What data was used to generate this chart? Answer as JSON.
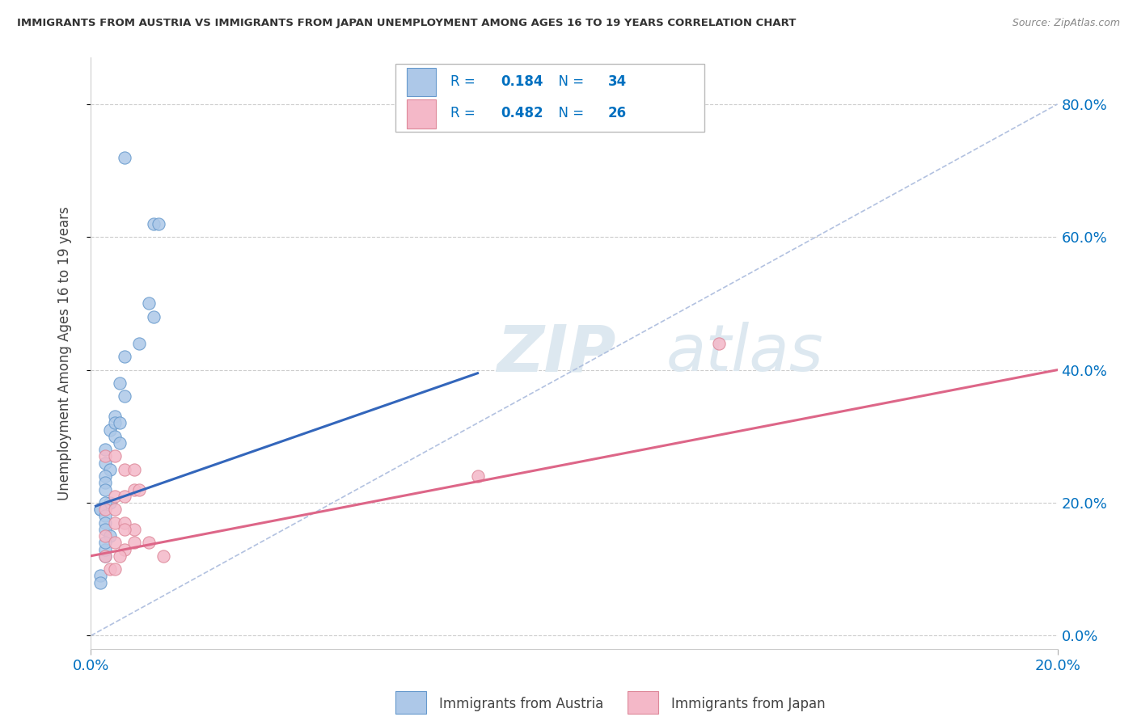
{
  "title": "IMMIGRANTS FROM AUSTRIA VS IMMIGRANTS FROM JAPAN UNEMPLOYMENT AMONG AGES 16 TO 19 YEARS CORRELATION CHART",
  "source": "Source: ZipAtlas.com",
  "ylabel": "Unemployment Among Ages 16 to 19 years",
  "ytick_labels": [
    "0.0%",
    "20.0%",
    "40.0%",
    "60.0%",
    "80.0%"
  ],
  "ytick_vals": [
    0.0,
    0.2,
    0.4,
    0.6,
    0.8
  ],
  "xlim": [
    0.0,
    0.2
  ],
  "ylim": [
    -0.02,
    0.87
  ],
  "austria_R": 0.184,
  "austria_N": 34,
  "japan_R": 0.482,
  "japan_N": 26,
  "austria_dot_color": "#adc8e8",
  "austria_edge_color": "#6699cc",
  "austria_line_color": "#3366bb",
  "japan_dot_color": "#f4b8c8",
  "japan_edge_color": "#dd8899",
  "japan_line_color": "#dd6688",
  "legend_text_color": "#0070c0",
  "ref_line_color": "#aabbdd",
  "watermark_color": "#dde8f0",
  "background_color": "#ffffff",
  "austria_scatter_x": [
    0.007,
    0.013,
    0.014,
    0.012,
    0.013,
    0.01,
    0.007,
    0.006,
    0.007,
    0.005,
    0.004,
    0.005,
    0.006,
    0.005,
    0.003,
    0.003,
    0.004,
    0.003,
    0.003,
    0.003,
    0.004,
    0.003,
    0.002,
    0.002,
    0.003,
    0.006,
    0.003,
    0.003,
    0.004,
    0.003,
    0.002,
    0.002,
    0.003,
    0.003
  ],
  "austria_scatter_y": [
    0.72,
    0.62,
    0.62,
    0.5,
    0.48,
    0.44,
    0.42,
    0.38,
    0.36,
    0.33,
    0.31,
    0.3,
    0.29,
    0.32,
    0.28,
    0.26,
    0.25,
    0.24,
    0.23,
    0.22,
    0.2,
    0.2,
    0.19,
    0.19,
    0.18,
    0.32,
    0.17,
    0.16,
    0.15,
    0.12,
    0.09,
    0.08,
    0.13,
    0.14
  ],
  "japan_scatter_x": [
    0.003,
    0.005,
    0.007,
    0.009,
    0.005,
    0.007,
    0.009,
    0.01,
    0.003,
    0.005,
    0.007,
    0.009,
    0.003,
    0.005,
    0.007,
    0.012,
    0.015,
    0.005,
    0.007,
    0.009,
    0.003,
    0.004,
    0.005,
    0.006,
    0.13,
    0.08
  ],
  "japan_scatter_y": [
    0.27,
    0.27,
    0.25,
    0.25,
    0.21,
    0.21,
    0.22,
    0.22,
    0.19,
    0.17,
    0.17,
    0.16,
    0.15,
    0.14,
    0.13,
    0.14,
    0.12,
    0.19,
    0.16,
    0.14,
    0.12,
    0.1,
    0.1,
    0.12,
    0.44,
    0.24
  ],
  "austria_trend_x": [
    0.001,
    0.08
  ],
  "austria_trend_y": [
    0.195,
    0.395
  ],
  "japan_trend_x": [
    0.0,
    0.2
  ],
  "japan_trend_y": [
    0.12,
    0.4
  ],
  "ref_line_x": [
    0.0,
    0.2
  ],
  "ref_line_y": [
    0.0,
    0.8
  ],
  "bottom_legend_austria": "Immigrants from Austria",
  "bottom_legend_japan": "Immigrants from Japan"
}
